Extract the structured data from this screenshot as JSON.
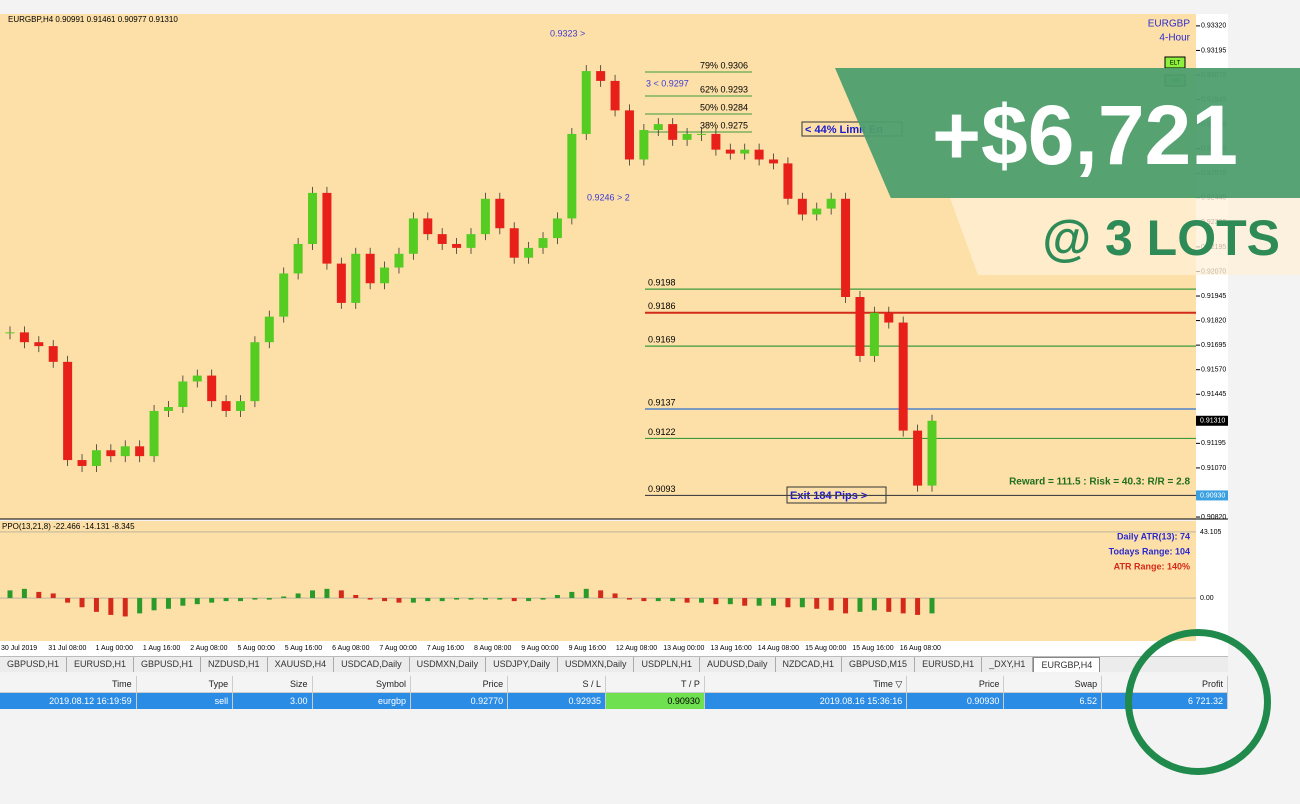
{
  "chart_data": {
    "type": "candlestick",
    "header": "EURGBP,H4  0.90991 0.91461 0.90977 0.91310",
    "symbol": "EURGBP",
    "timeframe": "4-Hour",
    "buttons": [
      "ELT",
      "sell"
    ],
    "ylim": [
      0.9081,
      0.9335
    ],
    "yticks": [
      {
        "value": 0.9332,
        "label": "0.93320"
      },
      {
        "value": 0.93195,
        "label": "0.93195"
      },
      {
        "value": 0.9307,
        "label": "0.93070"
      },
      {
        "value": 0.92945,
        "label": "0.92945"
      },
      {
        "value": 0.9282,
        "label": "0.92820"
      },
      {
        "value": 0.92695,
        "label": "0.92695"
      },
      {
        "value": 0.9257,
        "label": "0.92570"
      },
      {
        "value": 0.92445,
        "label": "0.92445"
      },
      {
        "value": 0.9232,
        "label": "0.92320"
      },
      {
        "value": 0.92195,
        "label": "0.92195"
      },
      {
        "value": 0.9207,
        "label": "0.92070"
      },
      {
        "value": 0.91945,
        "label": "0.91945"
      },
      {
        "value": 0.9182,
        "label": "0.91820"
      },
      {
        "value": 0.91695,
        "label": "0.91695"
      },
      {
        "value": 0.9157,
        "label": "0.91570"
      },
      {
        "value": 0.91445,
        "label": "0.91445"
      },
      {
        "value": 0.91195,
        "label": "0.91195"
      },
      {
        "value": 0.9107,
        "label": "0.91070"
      },
      {
        "value": 0.9082,
        "label": "0.90820"
      }
    ],
    "price_markers": [
      {
        "value": 0.9131,
        "label": "0.91310",
        "color": "#000000"
      },
      {
        "value": 0.9093,
        "label": "0.90930",
        "color": "#3aa0e0"
      }
    ],
    "closes": [
      0.9176,
      0.9171,
      0.9169,
      0.9161,
      0.9111,
      0.9108,
      0.9116,
      0.9113,
      0.9118,
      0.9113,
      0.9136,
      0.9138,
      0.9151,
      0.9154,
      0.9141,
      0.9136,
      0.9141,
      0.9171,
      0.9184,
      0.9206,
      0.9221,
      0.9247,
      0.9211,
      0.9191,
      0.9216,
      0.9201,
      0.9209,
      0.9216,
      0.9234,
      0.9226,
      0.9221,
      0.9219,
      0.9226,
      0.9244,
      0.9229,
      0.9214,
      0.9219,
      0.9224,
      0.9234,
      0.9277,
      0.9309,
      0.9304,
      0.9289,
      0.9264,
      0.9279,
      0.9282,
      0.9274,
      0.9277,
      0.9277,
      0.9269,
      0.9267,
      0.9269,
      0.9264,
      0.9262,
      0.9244,
      0.9236,
      0.9239,
      0.9244,
      0.9194,
      0.9164,
      0.9186,
      0.9181,
      0.9126,
      0.9098,
      0.9131
    ],
    "up_color": "#55cc22",
    "down_color": "#e8201a",
    "xlabels": [
      "30 Jul 2019",
      "31 Jul 08:00",
      "1 Aug 00:00",
      "1 Aug 16:00",
      "2 Aug 08:00",
      "5 Aug 00:00",
      "5 Aug 16:00",
      "6 Aug 08:00",
      "7 Aug 00:00",
      "7 Aug 16:00",
      "8 Aug 08:00",
      "9 Aug 00:00",
      "9 Aug 16:00",
      "12 Aug 08:00",
      "13 Aug 00:00",
      "13 Aug 16:00",
      "14 Aug 08:00",
      "15 Aug 00:00",
      "15 Aug 16:00",
      "16 Aug 08:00"
    ],
    "levels": [
      {
        "value": 0.9198,
        "color": "#3c9a3c"
      },
      {
        "value": 0.9186,
        "color": "#d42a1a"
      },
      {
        "value": 0.9169,
        "color": "#3c9a3c"
      },
      {
        "value": 0.9137,
        "color": "#3070d0"
      },
      {
        "value": 0.9122,
        "color": "#3c9a3c"
      },
      {
        "value": 0.9093,
        "color": "#444444"
      }
    ],
    "fib_labels": [
      "79% 0.9306",
      "62% 0.9293",
      "50% 0.9284",
      "38% 0.9275"
    ],
    "annotations": {
      "high": "0.9323 >",
      "retrace": "3 < 0.9297",
      "low": "0.9246 > 2",
      "limit": "< 44% Limit En",
      "exit": "Exit 184 Pips >",
      "rr": "Reward = 111.5 : Risk = 40.3: R/R = 2.8"
    },
    "oscillator": {
      "label": "PPO(13,21,8) -22.466 -14.131 -8.345",
      "ylim": [
        -28,
        45
      ],
      "yticks": [
        43.105,
        {
          "value": 0,
          "label": "0.00"
        }
      ],
      "values": [
        5,
        6,
        4,
        3,
        -3,
        -6,
        -9,
        -11,
        -12,
        -10,
        -8,
        -7,
        -5,
        -4,
        -3,
        -2,
        -2,
        -1,
        -1,
        1,
        3,
        5,
        6,
        5,
        2,
        -1,
        -2,
        -3,
        -3,
        -2,
        -2,
        -1,
        -1,
        -1,
        -1,
        -2,
        -2,
        -1,
        2,
        4,
        6,
        5,
        3,
        -1,
        -2,
        -2,
        -2,
        -3,
        -3,
        -4,
        -4,
        -5,
        -5,
        -5,
        -6,
        -6,
        -7,
        -8,
        -10,
        -9,
        -8,
        -9,
        -10,
        -11,
        -10
      ],
      "info": [
        "Daily ATR(13): 74",
        "Todays Range: 104",
        "ATR Range: 140%"
      ]
    }
  },
  "tabs": [
    "GBPUSD,H1",
    "EURUSD,H1",
    "GBPUSD,H1",
    "NZDUSD,H1",
    "XAUUSD,H4",
    "USDCAD,Daily",
    "USDMXN,Daily",
    "USDJPY,Daily",
    "USDMXN,Daily",
    "USDPLN,H1",
    "AUDUSD,Daily",
    "NZDCAD,H1",
    "GBPUSD,M15",
    "EURUSD,H1",
    "_DXY,H1",
    "EURGBP,H4"
  ],
  "table": {
    "header": [
      "Time",
      "Type",
      "Size",
      "Symbol",
      "Price",
      "S / L",
      "T / P",
      "Time ▽",
      "Price",
      "Swap",
      "Profit"
    ],
    "rows": [
      [
        "2019.08.12 16:19:59",
        "sell",
        "3.00",
        "eurgbp",
        "0.92770",
        "0.92935",
        "0.90930",
        "2019.08.16 15:36:16",
        "0.90930",
        "6.52",
        "6 721.32"
      ]
    ]
  },
  "overlay": {
    "profit": "+$6,721",
    "lots": "@ 3 LOTS"
  }
}
